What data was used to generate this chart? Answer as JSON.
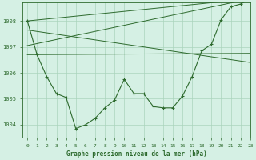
{
  "title": "Graphe pression niveau de la mer (hPa)",
  "background_color": "#d5f0e4",
  "grid_color": "#aad4bc",
  "line_color": "#2d6a2d",
  "xlim": [
    -0.5,
    23
  ],
  "ylim": [
    1003.5,
    1008.7
  ],
  "yticks": [
    1004,
    1005,
    1006,
    1007,
    1008
  ],
  "xticks": [
    0,
    1,
    2,
    3,
    4,
    5,
    6,
    7,
    8,
    9,
    10,
    11,
    12,
    13,
    14,
    15,
    16,
    17,
    18,
    19,
    20,
    21,
    22,
    23
  ],
  "main_line": {
    "x": [
      0,
      1,
      2,
      3,
      4,
      5,
      6,
      7,
      8,
      9,
      10,
      11,
      12,
      13,
      14,
      15,
      16,
      17,
      18,
      19,
      20,
      21,
      22,
      23
    ],
    "y": [
      1008.0,
      1006.7,
      1005.85,
      1005.2,
      1005.05,
      1003.85,
      1004.0,
      1004.25,
      1004.65,
      1004.95,
      1005.75,
      1005.2,
      1005.2,
      1004.7,
      1004.65,
      1004.65,
      1005.1,
      1005.85,
      1006.85,
      1007.1,
      1008.05,
      1008.55,
      1008.65,
      1008.85
    ]
  },
  "straight_line1": {
    "x": [
      0,
      23
    ],
    "y": [
      1006.7,
      1006.75
    ]
  },
  "straight_line2": {
    "x": [
      0,
      23
    ],
    "y": [
      1007.05,
      1008.85
    ]
  },
  "straight_line3": {
    "x": [
      0,
      23
    ],
    "y": [
      1007.65,
      1006.4
    ]
  },
  "straight_line4": {
    "x": [
      0,
      23
    ],
    "y": [
      1008.0,
      1008.85
    ]
  }
}
